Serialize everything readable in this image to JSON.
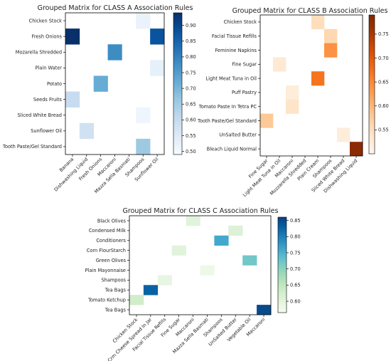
{
  "chart_data": [
    {
      "type": "heatmap",
      "title": "Grouped Matrix for CLASS A Association Rules",
      "rows": [
        "Chicken Stock",
        "Fresh Onions",
        "Mozarella Shredded",
        "Plain Water",
        "Potato",
        "Seeds Fruits",
        "Sliced White Bread",
        "Sunflower Oil",
        "Tooth Paste/Gel Standard"
      ],
      "columns": [
        "Banana",
        "Dishwashing Liquid",
        "Fresh Onions",
        "Maccaroni",
        "Mazza Sella Basmati",
        "Shampoos",
        "Sunflower Oil"
      ],
      "cells": [
        {
          "row": "Chicken Stock",
          "col": "Shampoos",
          "value": 0.52
        },
        {
          "row": "Fresh Onions",
          "col": "Banana",
          "value": 0.94
        },
        {
          "row": "Fresh Onions",
          "col": "Sunflower Oil",
          "value": 0.88
        },
        {
          "row": "Mozarella Shredded",
          "col": "Maccaroni",
          "value": 0.78
        },
        {
          "row": "Plain Water",
          "col": "Sunflower Oil",
          "value": 0.53
        },
        {
          "row": "Potato",
          "col": "Fresh Onions",
          "value": 0.72
        },
        {
          "row": "Seeds Fruits",
          "col": "Banana",
          "value": 0.6
        },
        {
          "row": "Sliced White Bread",
          "col": "Shampoos",
          "value": 0.51
        },
        {
          "row": "Sunflower Oil",
          "col": "Dishwashing Liquid",
          "value": 0.58
        },
        {
          "row": "Tooth Paste/Gel Standard",
          "col": "Shampoos",
          "value": 0.66
        }
      ],
      "colorscale": "Blues",
      "colorbar_range": [
        0.49,
        0.94
      ],
      "colorbar_ticks": [
        "0.50",
        "0.55",
        "0.60",
        "0.65",
        "0.70",
        "0.75",
        "0.80",
        "0.85",
        "0.90"
      ]
    },
    {
      "type": "heatmap",
      "title": "Grouped Matrix for CLASS B Association Rules",
      "rows": [
        "Chicken Stock",
        "Facial Tissue Refills",
        "Feminine Napkins",
        "Fine Sugar",
        "Light Meat Tuna in Oil",
        "Puff Pastry",
        "Tomato Paste In Tetra PC",
        "Tooth Paste/Gel Standard",
        "UnSalted Butter",
        "Bleach Liquid Normal"
      ],
      "columns": [
        "Fine Sugar",
        "Light Meat Tuna in Oil",
        "Maccaroni",
        "Mozzarella Shredded",
        "Plain Cream",
        "Shampoos",
        "Sliced White Bread",
        "Dishwashing Liquid"
      ],
      "cells": [
        {
          "row": "Chicken Stock",
          "col": "Plain Cream",
          "value": 0.55
        },
        {
          "row": "Facial Tissue Refills",
          "col": "Shampoos",
          "value": 0.56
        },
        {
          "row": "Feminine Napkins",
          "col": "Shampoos",
          "value": 0.64
        },
        {
          "row": "Fine Sugar",
          "col": "Light Meat Tuna in Oil",
          "value": 0.53
        },
        {
          "row": "Light Meat Tuna in Oil",
          "col": "Plain Cream",
          "value": 0.67
        },
        {
          "row": "Puff Pastry",
          "col": "Maccaroni",
          "value": 0.52
        },
        {
          "row": "Tomato Paste In Tetra PC",
          "col": "Maccaroni",
          "value": 0.54
        },
        {
          "row": "Tooth Paste/Gel Standard",
          "col": "Fine Sugar",
          "value": 0.58
        },
        {
          "row": "UnSalted Butter",
          "col": "Sliced White Bread",
          "value": 0.52
        },
        {
          "row": "Bleach Liquid Normal",
          "col": "Dishwashing Liquid",
          "value": 0.78
        }
      ],
      "colorscale": "Oranges",
      "colorbar_range": [
        0.5,
        0.79
      ],
      "colorbar_ticks": [
        "0.55",
        "0.60",
        "0.65",
        "0.70",
        "0.75"
      ]
    },
    {
      "type": "heatmap",
      "title": "Grouped Matrix for CLASS C Association Rules",
      "rows": [
        "Black Olives",
        "Condensed Milk",
        "Conditioners",
        "Corn FlourStarch",
        "Green Olives",
        "Plain Mayonnaise",
        "Shampoos",
        "Tea Bags",
        "Tomato Ketchup",
        "Tea Bags"
      ],
      "columns": [
        "Chicken Stock",
        "Crm Cheese Spread In Jar",
        "Facial Tissue Refills",
        "Fine Sugar",
        "Maccaroni",
        "Mazza Sella Basmati",
        "Shampoos",
        "UnSalted Butter",
        "Vegetable Oil",
        "Maccaroni"
      ],
      "cells": [
        {
          "row": 0,
          "col": 4,
          "value": 0.6
        },
        {
          "row": 1,
          "col": 7,
          "value": 0.61
        },
        {
          "row": 2,
          "col": 6,
          "value": 0.76
        },
        {
          "row": 3,
          "col": 3,
          "value": 0.6
        },
        {
          "row": 4,
          "col": 8,
          "value": 0.72
        },
        {
          "row": 5,
          "col": 5,
          "value": 0.58
        },
        {
          "row": 6,
          "col": 2,
          "value": 0.59
        },
        {
          "row": 7,
          "col": 1,
          "value": 0.83
        },
        {
          "row": 8,
          "col": 0,
          "value": 0.63
        },
        {
          "row": 9,
          "col": 9,
          "value": 0.85
        }
      ],
      "colorscale": "GnBu",
      "colorbar_range": [
        0.565,
        0.86
      ],
      "colorbar_ticks": [
        "0.60",
        "0.65",
        "0.70",
        "0.75",
        "0.80",
        "0.85"
      ]
    }
  ]
}
